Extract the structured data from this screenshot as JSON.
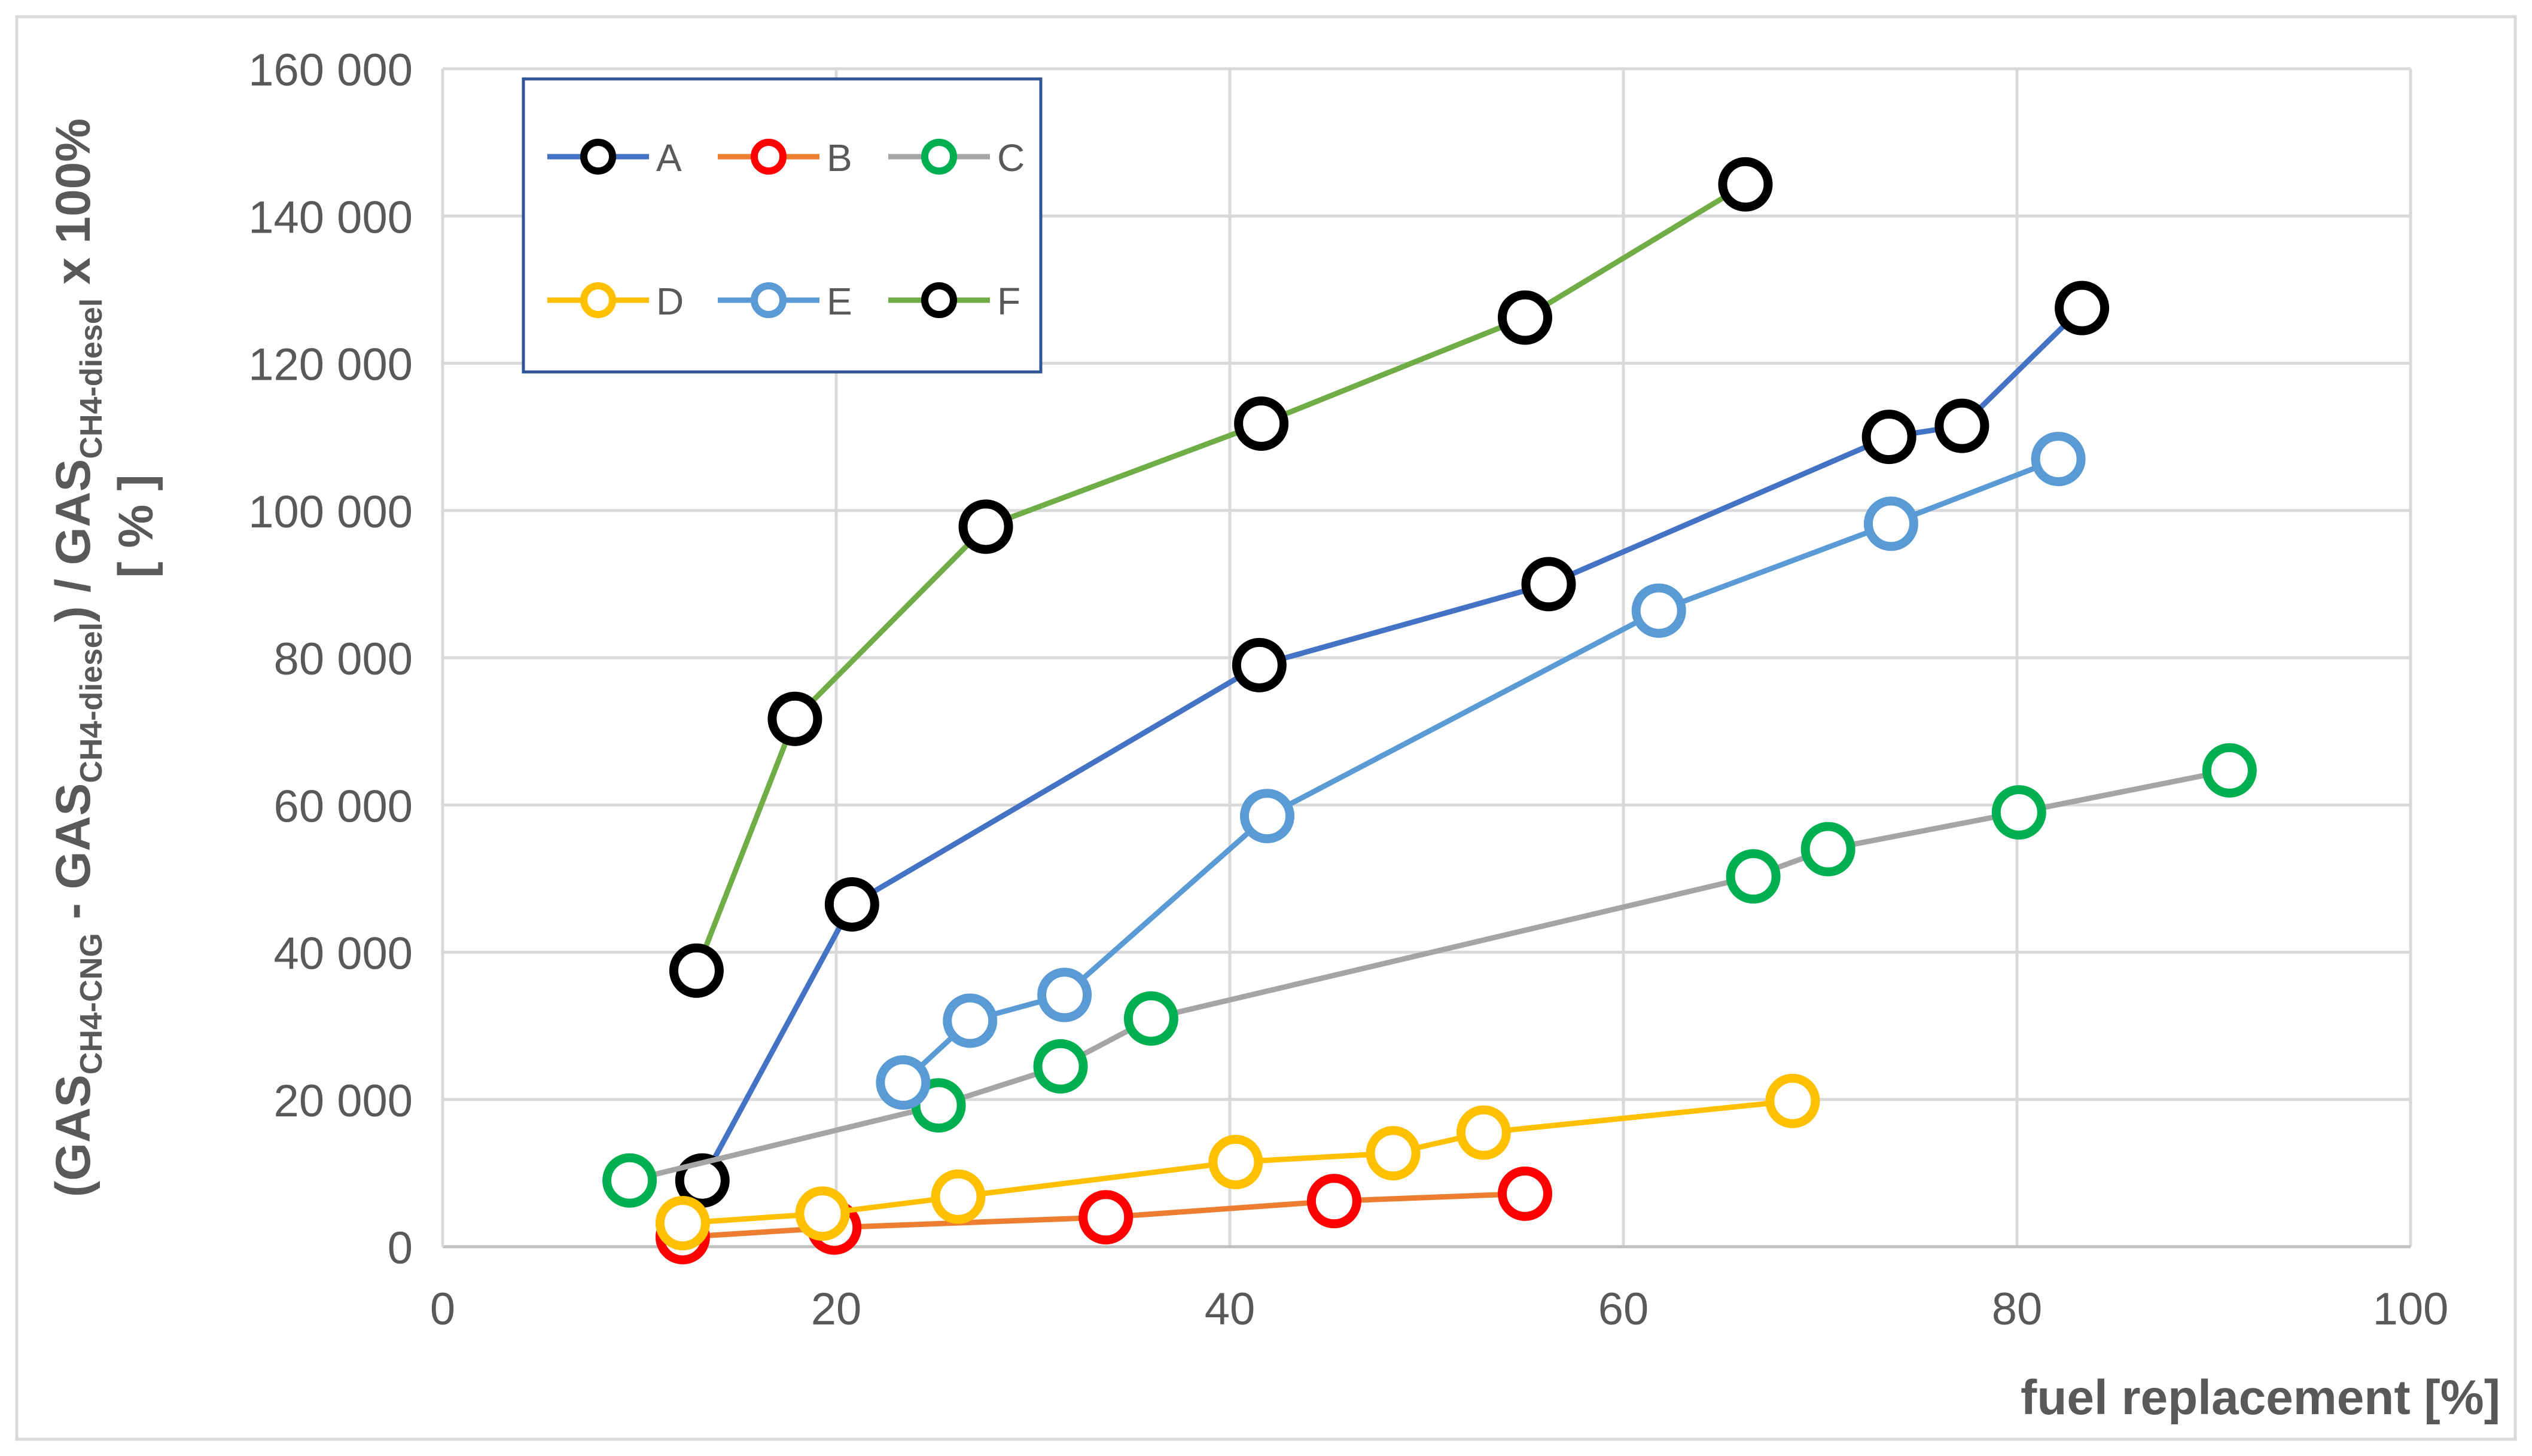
{
  "chart_data": {
    "type": "line",
    "xlabel": "fuel replacement [%]",
    "ylabel_parts": [
      {
        "text": "(GAS",
        "sub": false
      },
      {
        "text": "CH4-CNG",
        "sub": true
      },
      {
        "text": " - GAS",
        "sub": false
      },
      {
        "text": "CH4-diesel",
        "sub": true
      },
      {
        "text": ") / GAS",
        "sub": false
      },
      {
        "text": "CH4-diesel",
        "sub": true
      },
      {
        "text": " x 100%",
        "sub": false
      }
    ],
    "ylabel_line2": "[ % ]",
    "xlim": [
      0,
      100
    ],
    "ylim": [
      0,
      160000
    ],
    "x_ticks": [
      0,
      20,
      40,
      60,
      80,
      100
    ],
    "x_tick_labels": [
      "0",
      "20",
      "40",
      "60",
      "80",
      "100"
    ],
    "y_ticks": [
      0,
      20000,
      40000,
      60000,
      80000,
      100000,
      120000,
      140000,
      160000
    ],
    "y_tick_labels": [
      "0",
      "20 000",
      "40 000",
      "60 000",
      "80 000",
      "100 000",
      "120 000",
      "140 000",
      "160 000"
    ],
    "grid": true,
    "legend_position": "top-left",
    "series": [
      {
        "name": "A",
        "line_color": "#4472C4",
        "marker_color": "#000000",
        "x": [
          13.2,
          20.8,
          41.5,
          56.2,
          73.5,
          77.2,
          83.3
        ],
        "y": [
          9000,
          46500,
          79000,
          90000,
          110000,
          111500,
          127500
        ]
      },
      {
        "name": "B",
        "line_color": "#ED7D31",
        "marker_color": "#FF0000",
        "x": [
          12.2,
          19.9,
          33.7,
          45.3,
          55.0
        ],
        "y": [
          1300,
          2600,
          4000,
          6200,
          7200
        ]
      },
      {
        "name": "C",
        "line_color": "#A5A5A5",
        "marker_color": "#00B050",
        "x": [
          9.5,
          25.2,
          31.4,
          36.0,
          66.6,
          70.4,
          80.1,
          90.8
        ],
        "y": [
          9000,
          19200,
          24500,
          31000,
          50300,
          54000,
          59000,
          64700
        ]
      },
      {
        "name": "D",
        "line_color": "#FFC000",
        "marker_color": "#FFC000",
        "x": [
          12.2,
          19.3,
          26.2,
          40.3,
          48.3,
          52.9,
          68.6
        ],
        "y": [
          3200,
          4500,
          6800,
          11500,
          12700,
          15500,
          19800
        ]
      },
      {
        "name": "E",
        "line_color": "#5B9BD5",
        "marker_color": "#5B9BD5",
        "x": [
          23.4,
          26.8,
          31.6,
          41.9,
          61.8,
          73.6,
          82.1
        ],
        "y": [
          22300,
          30700,
          34200,
          58500,
          86400,
          98200,
          107000
        ]
      },
      {
        "name": "F",
        "line_color": "#70AD47",
        "marker_color": "#000000",
        "x": [
          12.9,
          17.9,
          27.6,
          41.6,
          55.0,
          66.2
        ],
        "y": [
          37500,
          71700,
          97800,
          111800,
          126200,
          144300
        ]
      }
    ]
  }
}
